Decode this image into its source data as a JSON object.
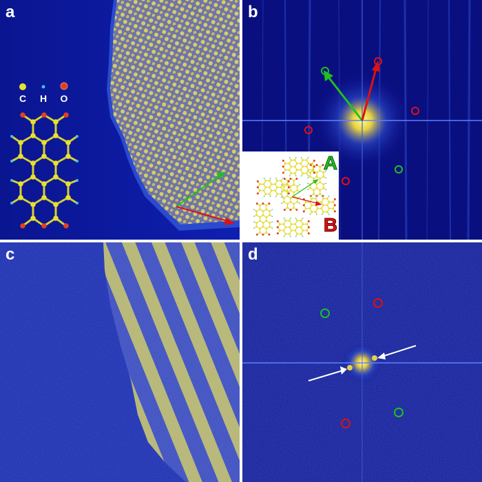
{
  "panels": [
    {
      "label": "a",
      "legend": {
        "atoms": [
          {
            "symbol": "C",
            "color": "#e8e030"
          },
          {
            "symbol": "H",
            "color": "#40c0e8"
          },
          {
            "symbol": "O",
            "color": "#e04020"
          }
        ]
      }
    },
    {
      "label": "b",
      "inset": {
        "label_A": "A",
        "label_B": "B",
        "color_A": "#20c020",
        "color_B": "#e01010"
      }
    },
    {
      "label": "c"
    },
    {
      "label": "d"
    }
  ],
  "colors": {
    "background": "#0a1aa0",
    "lattice": "#c8c060",
    "vector_a": "#20c020",
    "vector_b": "#e01010",
    "marker_green": "#20c020",
    "marker_red": "#e01010"
  }
}
